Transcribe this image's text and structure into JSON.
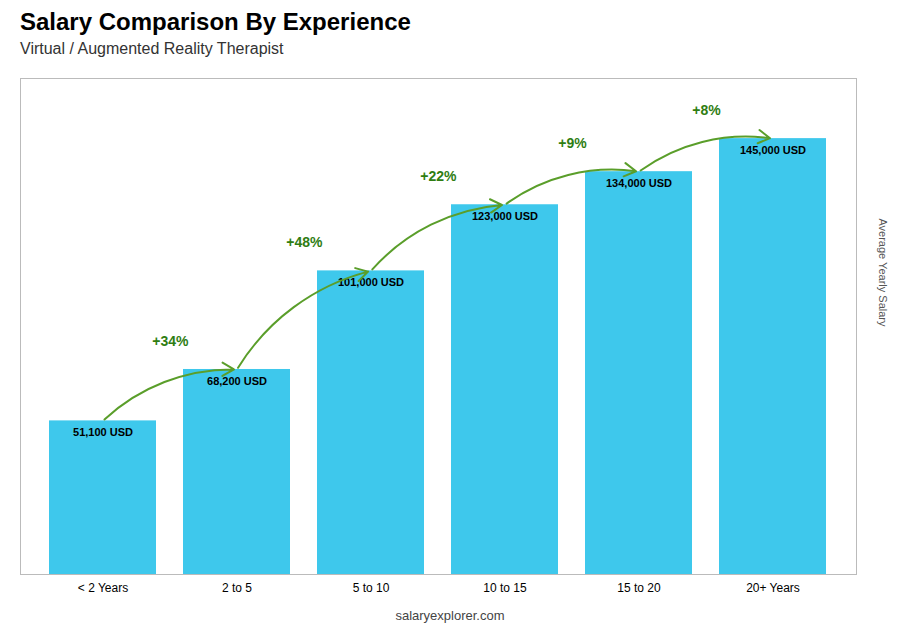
{
  "chart_data": {
    "type": "bar",
    "title": "Salary Comparison By Experience",
    "subtitle": "Virtual / Augmented Reality Therapist",
    "y_label": "Average Yearly Salary",
    "categories": [
      "< 2 Years",
      "2 to 5",
      "5 to 10",
      "10 to 15",
      "15 to 20",
      "20+ Years"
    ],
    "values": [
      51100,
      68200,
      101000,
      123000,
      134000,
      145000
    ],
    "value_labels": [
      "51,100 USD",
      "68,200 USD",
      "101,000 USD",
      "123,000 USD",
      "134,000 USD",
      "145,000 USD"
    ],
    "data_labels": true,
    "color": "#3ec8ec",
    "ylim": [
      0,
      165000
    ],
    "grid": false,
    "tick_labels": "x",
    "annotations": [
      {
        "text": "+34%",
        "from": "< 2 Years",
        "to": "2 to 5"
      },
      {
        "text": "+48%",
        "from": "2 to 5",
        "to": "5 to 10"
      },
      {
        "text": "+22%",
        "from": "5 to 10",
        "to": "10 to 15"
      },
      {
        "text": "+9%",
        "from": "10 to 15",
        "to": "15 to 20"
      },
      {
        "text": "+8%",
        "from": "15 to 20",
        "to": "20+ Years"
      },
      {
        "text": "salaryexplorer.com"
      }
    ]
  }
}
